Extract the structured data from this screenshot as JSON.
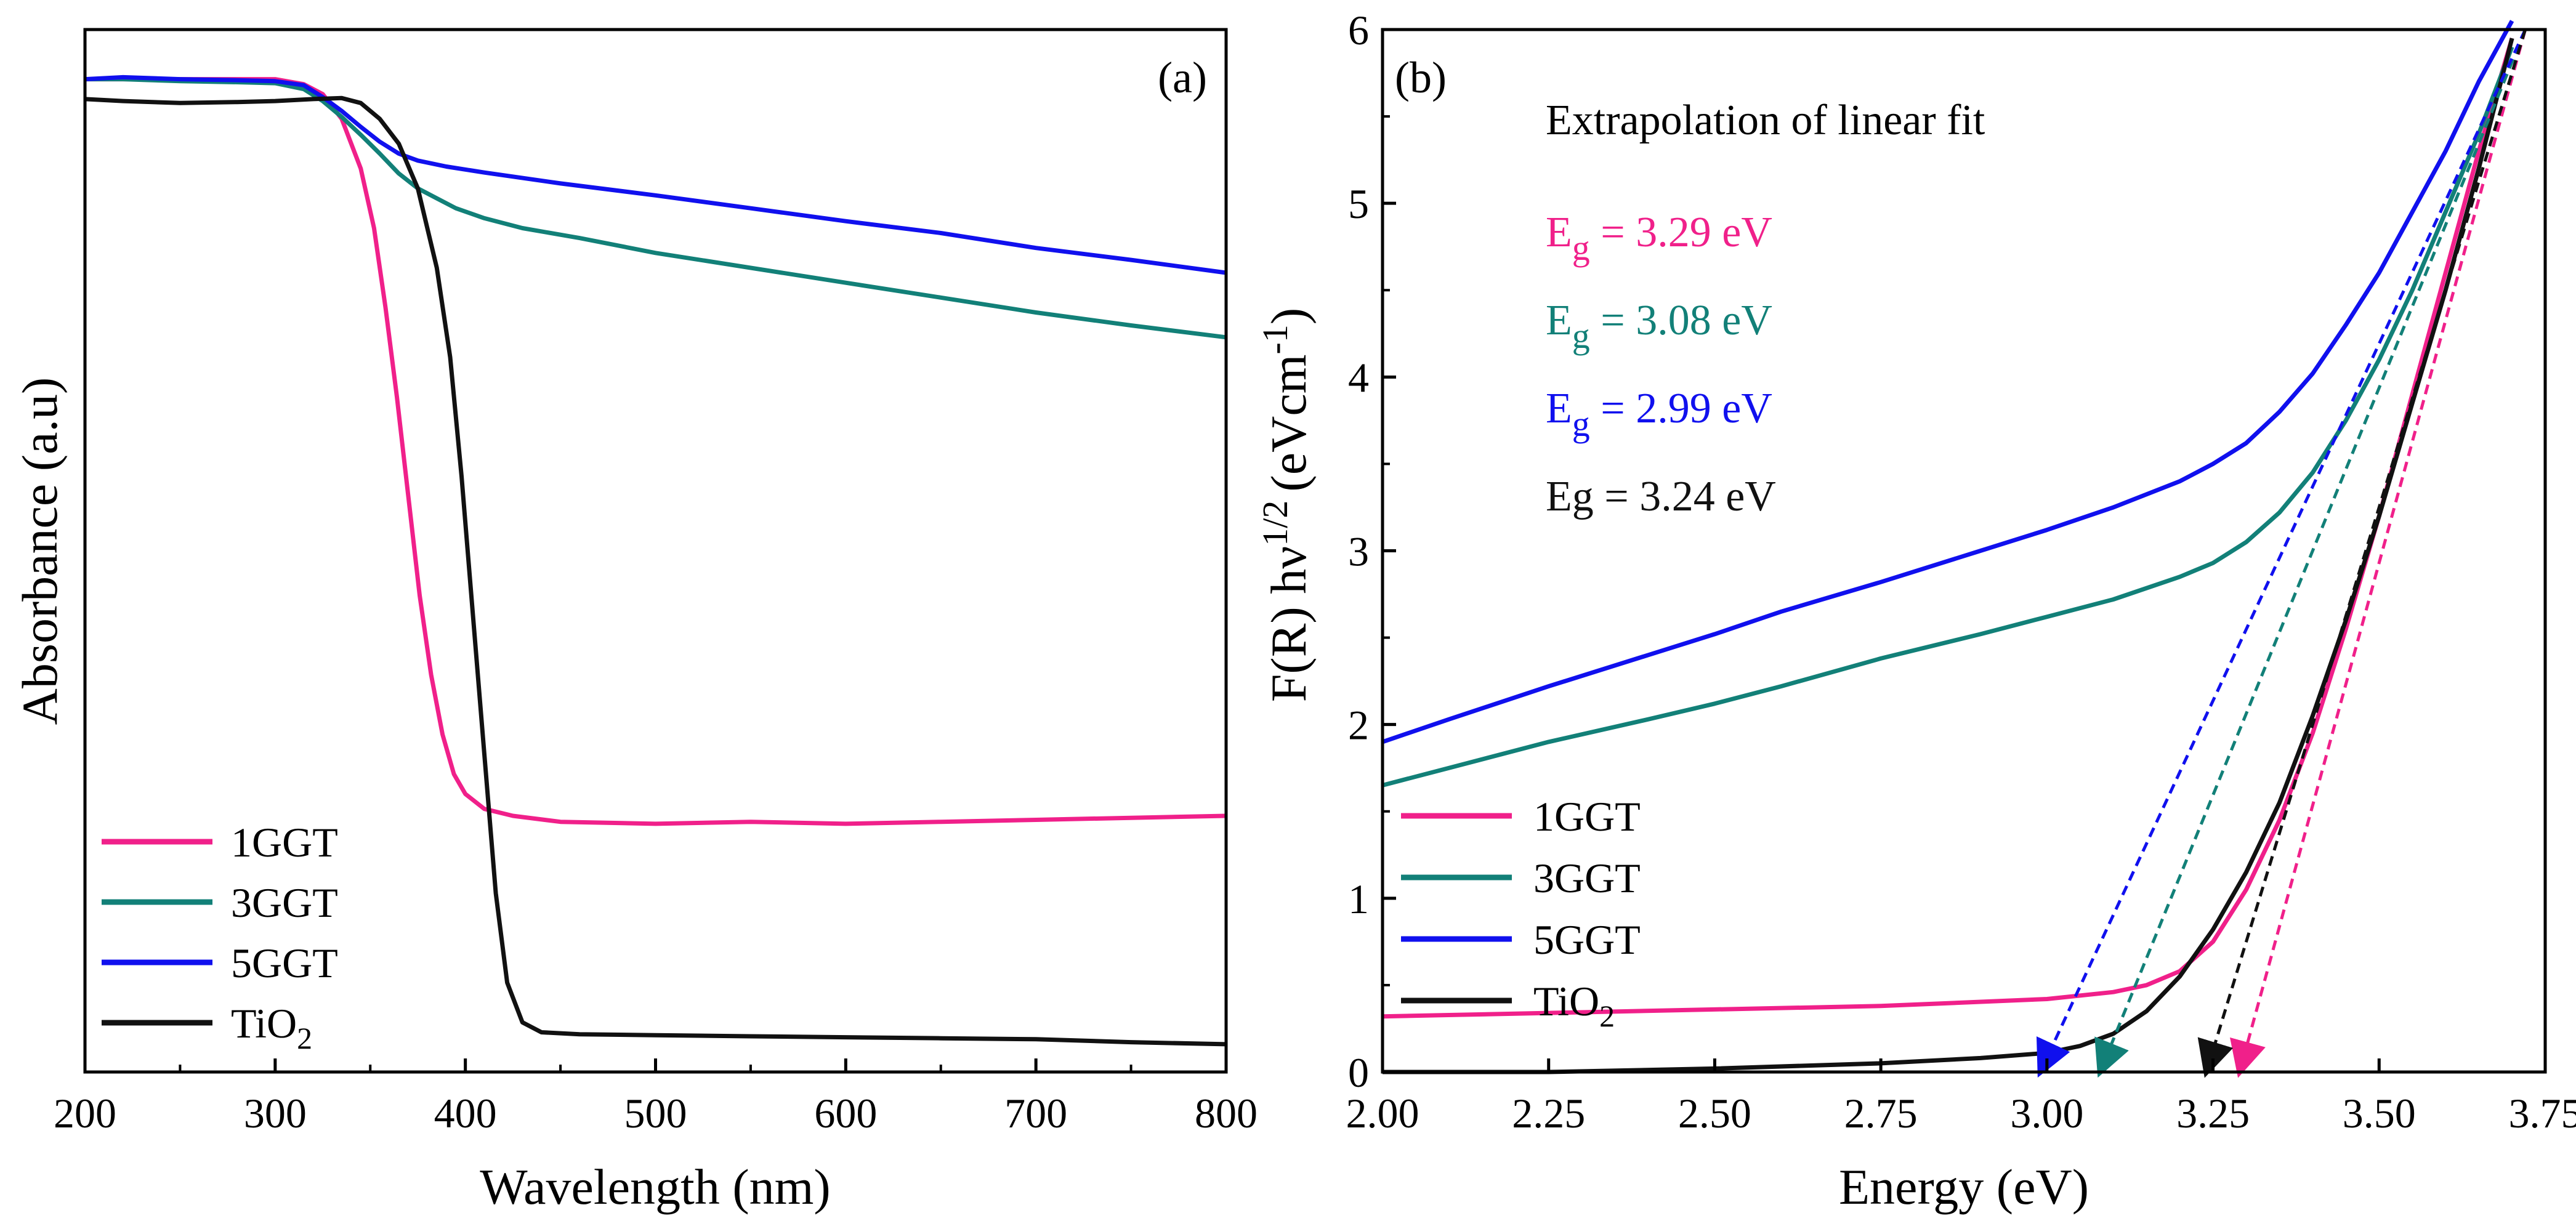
{
  "colors": {
    "1GGT": "#f0208a",
    "3GGT": "#128078",
    "5GGT": "#1010ee",
    "TiO2": "#111111"
  },
  "chart_data": [
    {
      "type": "line",
      "panel": "(a)",
      "xlabel": "Wavelength (nm)",
      "ylabel": "Absorbance (a.u)",
      "xlim": [
        200,
        800
      ],
      "ylim": [
        0,
        1.05
      ],
      "y_ticks_shown": false,
      "x_ticks": [
        200,
        300,
        400,
        500,
        600,
        700,
        800
      ],
      "x_tick_labels": [
        "200",
        "300",
        "400",
        "500",
        "600",
        "700",
        "800"
      ],
      "legend_position": "bottom-left",
      "legend": [
        {
          "label": "1GGT",
          "series": "1GGT"
        },
        {
          "label": "3GGT",
          "series": "3GGT"
        },
        {
          "label": "5GGT",
          "series": "5GGT"
        },
        {
          "label": "TiO",
          "sub": "2",
          "series": "TiO2"
        }
      ],
      "series": [
        {
          "name": "1GGT",
          "x": [
            200,
            220,
            250,
            280,
            300,
            315,
            325,
            335,
            345,
            352,
            358,
            364,
            370,
            376,
            382,
            388,
            394,
            400,
            410,
            425,
            450,
            500,
            550,
            600,
            650,
            700,
            750,
            800
          ],
          "y": [
            1.0,
            1.0,
            1.0,
            1.0,
            1.0,
            0.995,
            0.985,
            0.96,
            0.91,
            0.85,
            0.77,
            0.68,
            0.58,
            0.48,
            0.4,
            0.34,
            0.3,
            0.28,
            0.265,
            0.258,
            0.252,
            0.25,
            0.252,
            0.25,
            0.252,
            0.254,
            0.256,
            0.258
          ]
        },
        {
          "name": "3GGT",
          "x": [
            200,
            220,
            250,
            280,
            300,
            315,
            325,
            335,
            345,
            355,
            365,
            375,
            385,
            395,
            410,
            430,
            460,
            500,
            550,
            600,
            650,
            700,
            750,
            800
          ],
          "y": [
            1.0,
            1.0,
            0.998,
            0.997,
            0.996,
            0.99,
            0.978,
            0.962,
            0.944,
            0.925,
            0.905,
            0.89,
            0.88,
            0.87,
            0.86,
            0.85,
            0.84,
            0.825,
            0.81,
            0.795,
            0.78,
            0.765,
            0.752,
            0.74
          ]
        },
        {
          "name": "5GGT",
          "x": [
            200,
            220,
            250,
            280,
            300,
            315,
            325,
            335,
            345,
            355,
            365,
            375,
            390,
            410,
            450,
            500,
            550,
            600,
            650,
            700,
            750,
            800
          ],
          "y": [
            1.0,
            1.002,
            1.0,
            0.999,
            0.998,
            0.994,
            0.982,
            0.968,
            0.952,
            0.937,
            0.925,
            0.918,
            0.912,
            0.906,
            0.895,
            0.883,
            0.87,
            0.857,
            0.845,
            0.83,
            0.818,
            0.805
          ]
        },
        {
          "name": "TiO2",
          "x": [
            200,
            220,
            250,
            280,
            300,
            320,
            335,
            345,
            355,
            365,
            375,
            385,
            392,
            398,
            404,
            410,
            416,
            422,
            430,
            440,
            460,
            500,
            550,
            600,
            650,
            700,
            750,
            800
          ],
          "y": [
            0.98,
            0.978,
            0.976,
            0.977,
            0.978,
            0.98,
            0.981,
            0.976,
            0.96,
            0.935,
            0.89,
            0.81,
            0.72,
            0.6,
            0.46,
            0.32,
            0.18,
            0.09,
            0.05,
            0.04,
            0.038,
            0.037,
            0.036,
            0.035,
            0.034,
            0.033,
            0.03,
            0.028
          ]
        }
      ]
    },
    {
      "type": "line",
      "panel": "(b)",
      "xlabel": "Energy (eV)",
      "ylabel": "F(R) hν ¹ᐟ² (eVcm⁻¹)",
      "ylabel_parts": {
        "main": "F(R) hν",
        "sup1": "1/2",
        "mid": "(eVcm",
        "sup2": "-1",
        "end": ")"
      },
      "xlim": [
        2.0,
        3.75
      ],
      "ylim": [
        0,
        6
      ],
      "x_ticks": [
        2.0,
        2.25,
        2.5,
        2.75,
        3.0,
        3.25,
        3.5,
        3.75
      ],
      "x_tick_labels": [
        "2.00",
        "2.25",
        "2.50",
        "2.75",
        "3.00",
        "3.25",
        "3.50",
        "3.75"
      ],
      "y_ticks": [
        0,
        1,
        2,
        3,
        4,
        5,
        6
      ],
      "y_tick_labels": [
        "0",
        "1",
        "2",
        "3",
        "4",
        "5",
        "6"
      ],
      "annotation_title": "Extrapolation of linear fit",
      "annotations": [
        {
          "prefix": "E",
          "sub": "g",
          "text": " = 3.29 eV",
          "series": "1GGT"
        },
        {
          "prefix": "E",
          "sub": "g",
          "text": " = 3.08 eV",
          "series": "3GGT"
        },
        {
          "prefix": "E",
          "sub": "g",
          "text": " = 2.99 eV",
          "series": "5GGT"
        },
        {
          "prefix": "Eg = 3.24 eV",
          "sub": "",
          "text": "",
          "series": "TiO2"
        }
      ],
      "legend_position": "bottom-left",
      "legend": [
        {
          "label": "1GGT",
          "series": "1GGT"
        },
        {
          "label": "3GGT",
          "series": "3GGT"
        },
        {
          "label": "5GGT",
          "series": "5GGT"
        },
        {
          "label": "TiO",
          "sub": "2",
          "series": "TiO2"
        }
      ],
      "series": [
        {
          "name": "1GGT",
          "x": [
            2.0,
            2.25,
            2.5,
            2.75,
            3.0,
            3.1,
            3.15,
            3.2,
            3.25,
            3.3,
            3.35,
            3.4,
            3.45,
            3.5,
            3.55,
            3.6,
            3.65,
            3.7
          ],
          "y": [
            0.32,
            0.34,
            0.36,
            0.38,
            0.42,
            0.46,
            0.5,
            0.58,
            0.75,
            1.05,
            1.45,
            1.95,
            2.55,
            3.2,
            3.9,
            4.6,
            5.3,
            5.95
          ]
        },
        {
          "name": "3GGT",
          "x": [
            2.0,
            2.1,
            2.25,
            2.4,
            2.5,
            2.6,
            2.75,
            2.9,
            3.0,
            3.1,
            3.2,
            3.25,
            3.3,
            3.35,
            3.4,
            3.45,
            3.5,
            3.55,
            3.6,
            3.65,
            3.7
          ],
          "y": [
            1.65,
            1.75,
            1.9,
            2.03,
            2.12,
            2.22,
            2.38,
            2.52,
            2.62,
            2.72,
            2.85,
            2.93,
            3.05,
            3.22,
            3.45,
            3.75,
            4.1,
            4.5,
            4.95,
            5.4,
            5.9
          ]
        },
        {
          "name": "5GGT",
          "x": [
            2.0,
            2.1,
            2.25,
            2.4,
            2.5,
            2.6,
            2.75,
            2.9,
            3.0,
            3.1,
            3.2,
            3.25,
            3.3,
            3.35,
            3.4,
            3.45,
            3.5,
            3.55,
            3.6,
            3.65,
            3.7
          ],
          "y": [
            1.9,
            2.03,
            2.22,
            2.4,
            2.52,
            2.65,
            2.82,
            3.0,
            3.12,
            3.25,
            3.4,
            3.5,
            3.62,
            3.8,
            4.02,
            4.3,
            4.6,
            4.95,
            5.3,
            5.7,
            6.05
          ]
        },
        {
          "name": "TiO2",
          "x": [
            2.0,
            2.25,
            2.5,
            2.75,
            2.9,
            3.0,
            3.05,
            3.1,
            3.15,
            3.2,
            3.25,
            3.3,
            3.35,
            3.4,
            3.45,
            3.5,
            3.55,
            3.6,
            3.65,
            3.7
          ],
          "y": [
            0.0,
            0.0,
            0.02,
            0.05,
            0.08,
            0.11,
            0.15,
            0.22,
            0.35,
            0.55,
            0.82,
            1.15,
            1.55,
            2.05,
            2.6,
            3.2,
            3.85,
            4.5,
            5.2,
            5.95
          ]
        }
      ],
      "fit_lines": [
        {
          "series": "1GGT",
          "from": [
            3.72,
            6.0
          ],
          "to": [
            3.29,
            0.0
          ]
        },
        {
          "series": "3GGT",
          "from": [
            3.72,
            6.0
          ],
          "to": [
            3.08,
            0.0
          ]
        },
        {
          "series": "5GGT",
          "from": [
            3.72,
            6.0
          ],
          "to": [
            2.99,
            0.0
          ]
        },
        {
          "series": "TiO2",
          "from": [
            3.72,
            6.0
          ],
          "to": [
            3.24,
            0.0
          ]
        }
      ]
    }
  ]
}
